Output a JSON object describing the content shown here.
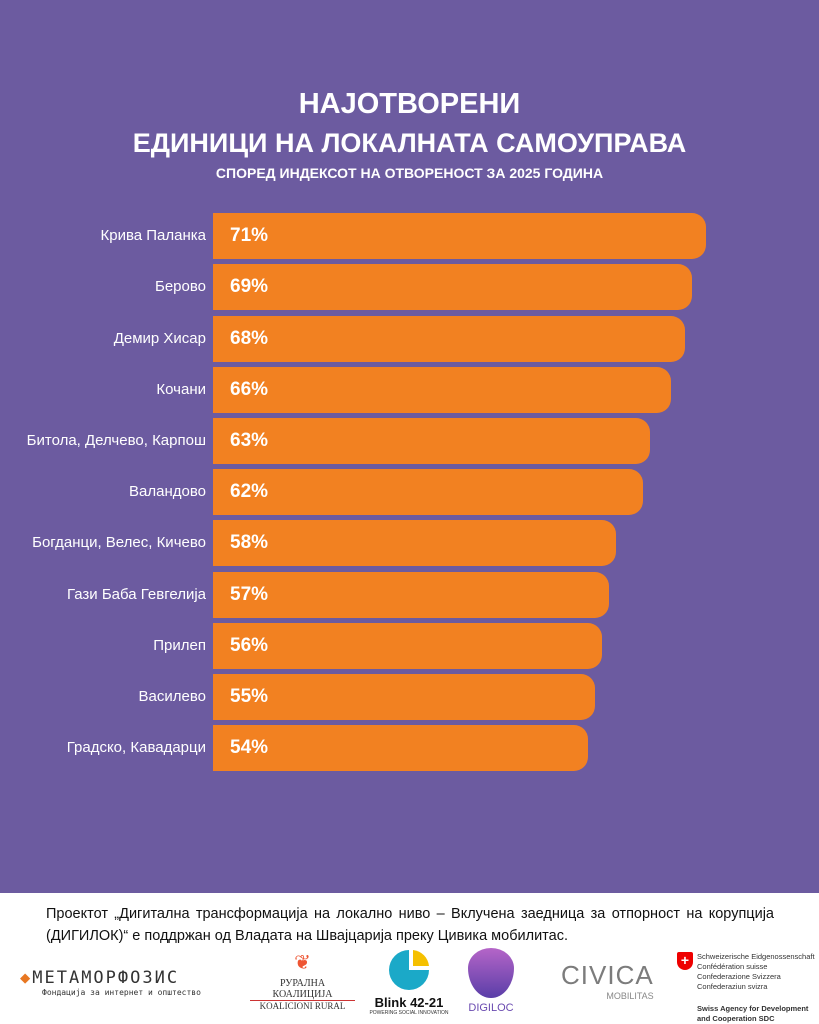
{
  "header": {
    "title_line1": "НАЈОТВОРЕНИ",
    "title_line2": "ЕДИНИЦИ НА ЛОКАЛНАТА САМОУПРАВА",
    "subtitle": "СПОРЕД ИНДЕКСОТ НА ОТВОРЕНОСТ ЗА 2025 ГОДИНА"
  },
  "chart_data": {
    "type": "bar",
    "orientation": "horizontal",
    "title": "НАЈОТВОРЕНИ ЕДИНИЦИ НА ЛОКАЛНАТА САМОУПРАВА",
    "subtitle": "СПОРЕД ИНДЕКСОТ НА ОТВОРЕНОСТ ЗА 2025 ГОДИНА",
    "categories": [
      "Крива Паланка",
      "Берово",
      "Демир Хисар",
      "Кочани",
      "Битола, Делчево, Карпош",
      "Валандово",
      "Богданци, Велес, Кичево",
      "Гази Баба Гевгелија",
      "Прилеп",
      "Василево",
      "Градско, Кавадарци"
    ],
    "values": [
      71,
      69,
      68,
      66,
      63,
      62,
      58,
      57,
      56,
      55,
      54
    ],
    "value_labels": [
      "71%",
      "69%",
      "68%",
      "66%",
      "63%",
      "62%",
      "58%",
      "57%",
      "56%",
      "55%",
      "54%"
    ],
    "bar_color": "#f28121",
    "background": "#6c5ba0",
    "unit": "%"
  },
  "footer": {
    "text": "Проектот „Дигитална трансформација на локално ниво – Вклучена заедница за отпорност на корупција (ДИГИЛОК)“ е поддржан од Владата на Швајцарија преку Цивика мобилитас.",
    "logos": {
      "metamorfozis": "МЕТАМОРФОЗИС",
      "metamorfozis_sub": "Фондација за интернет и општество",
      "rural": "РУРАЛНА КОАЛИЦИЈА",
      "rural_sub": "KOALICIONI RURAL",
      "blink": "Blink 42-21",
      "blink_sub": "POWERING SOCIAL INNOVATION",
      "digiloc": "DIGILOC",
      "civica": "CIVICA",
      "civica_sub": "MOBILITAS",
      "swiss_lines": [
        "Schweizerische Eidgenossenschaft",
        "Confédération suisse",
        "Confederazione Svizzera",
        "Confederaziun svizra"
      ],
      "sdc": "Swiss Agency for Development and Cooperation SDC"
    }
  }
}
